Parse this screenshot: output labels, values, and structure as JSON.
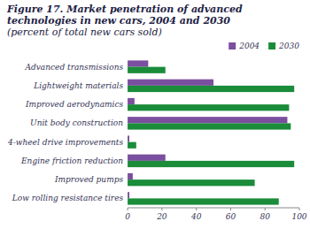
{
  "chart_data": {
    "type": "bar",
    "orientation": "horizontal",
    "title": "Figure 17. Market penetration of advanced technologies in new cars, 2004 and 2030",
    "subtitle": "(percent of total new cars sold)",
    "categories": [
      "Advanced transmissions",
      "Lightweight materials",
      "Improved aerodynamics",
      "Unit body construction",
      "4-wheel drive improvements",
      "Engine friction reduction",
      "Improved pumps",
      "Low rolling resistance tires"
    ],
    "series": [
      {
        "name": "2004",
        "color": "#7B4FA0",
        "values": [
          12,
          50,
          4,
          93,
          1,
          22,
          3,
          1
        ]
      },
      {
        "name": "2030",
        "color": "#1A8C3A",
        "values": [
          22,
          97,
          94,
          95,
          5,
          97,
          74,
          88
        ]
      }
    ],
    "xlim": [
      0,
      100
    ],
    "xticks": [
      0,
      20,
      40,
      60,
      80,
      100
    ],
    "grid": false,
    "legend": "top-right"
  }
}
